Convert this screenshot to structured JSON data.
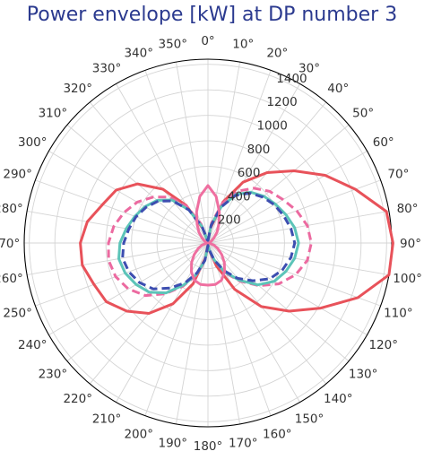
{
  "chart_data": {
    "type": "line",
    "projection": "polar",
    "title": "Power envelope [kW] at DP number 3",
    "theta_zero": "north",
    "theta_direction": "clockwise",
    "theta_tick_labels": [
      "0°",
      "10°",
      "20°",
      "30°",
      "40°",
      "50°",
      "60°",
      "70°",
      "80°",
      "90°",
      "100°",
      "110°",
      "120°",
      "130°",
      "140°",
      "150°",
      "160°",
      "170°",
      "180°",
      "190°",
      "200°",
      "210°",
      "220°",
      "230°",
      "240°",
      "250°",
      "260°",
      "270°",
      "280°",
      "290°",
      "300°",
      "310°",
      "320°",
      "330°",
      "340°",
      "350°"
    ],
    "r_ticks": [
      200,
      400,
      600,
      800,
      1000,
      1200,
      1400
    ],
    "r_tick_labels": [
      "200",
      "400",
      "600",
      "800",
      "1000",
      "1200",
      "1400"
    ],
    "rlim": [
      0,
      1440
    ],
    "grid": true,
    "series": [
      {
        "color": "#e8525a",
        "style": "solid",
        "theta": [
          0,
          10,
          20,
          30,
          40,
          50,
          60,
          70,
          80,
          90,
          100,
          110,
          120,
          130,
          140,
          150,
          160,
          170,
          180,
          190,
          200,
          210,
          220,
          230,
          240,
          250,
          260,
          270,
          280,
          290,
          300,
          310,
          320,
          330,
          340,
          350
        ],
        "r": [
          20,
          120,
          340,
          550,
          720,
          880,
          1060,
          1230,
          1420,
          1450,
          1440,
          1250,
          1020,
          830,
          650,
          420,
          190,
          60,
          15,
          120,
          340,
          550,
          720,
          830,
          920,
          950,
          1000,
          1000,
          960,
          880,
          830,
          720,
          550,
          340,
          120,
          20
        ]
      },
      {
        "color": "#ec6aa0",
        "style": "dashed",
        "theta": [
          0,
          10,
          20,
          30,
          40,
          50,
          60,
          70,
          80,
          90,
          100,
          110,
          120,
          130,
          140,
          150,
          160,
          170,
          180,
          190,
          200,
          210,
          220,
          230,
          240,
          250,
          260,
          270,
          280,
          290,
          300,
          310,
          320,
          330,
          340,
          350
        ],
        "r": [
          20,
          160,
          330,
          470,
          560,
          630,
          680,
          740,
          790,
          810,
          790,
          730,
          640,
          520,
          390,
          270,
          150,
          50,
          20,
          150,
          270,
          390,
          520,
          640,
          720,
          770,
          790,
          780,
          750,
          700,
          640,
          560,
          470,
          330,
          160,
          20
        ]
      },
      {
        "color": "#5cc4b8",
        "style": "solid",
        "theta": [
          0,
          10,
          20,
          30,
          40,
          50,
          60,
          70,
          80,
          90,
          100,
          110,
          120,
          130,
          140,
          150,
          160,
          170,
          180,
          190,
          200,
          210,
          220,
          230,
          240,
          250,
          260,
          270,
          280,
          290,
          300,
          310,
          320,
          330,
          340,
          350
        ],
        "r": [
          20,
          140,
          300,
          440,
          520,
          570,
          610,
          650,
          690,
          710,
          690,
          650,
          600,
          510,
          380,
          260,
          140,
          50,
          20,
          140,
          260,
          380,
          510,
          600,
          650,
          690,
          710,
          690,
          650,
          610,
          570,
          520,
          440,
          300,
          140,
          20
        ]
      },
      {
        "color": "#3d4eb0",
        "style": "dashed",
        "theta": [
          0,
          10,
          20,
          30,
          40,
          50,
          60,
          70,
          80,
          90,
          100,
          110,
          120,
          130,
          140,
          150,
          160,
          170,
          180,
          190,
          200,
          210,
          220,
          230,
          240,
          250,
          260,
          270,
          280,
          290,
          300,
          310,
          320,
          330,
          340,
          350
        ],
        "r": [
          20,
          140,
          300,
          430,
          510,
          560,
          600,
          630,
          660,
          680,
          660,
          620,
          560,
          460,
          360,
          250,
          140,
          50,
          20,
          140,
          250,
          360,
          460,
          560,
          620,
          660,
          680,
          660,
          630,
          600,
          560,
          510,
          430,
          300,
          140,
          20
        ]
      },
      {
        "color": "#ef6fa0",
        "style": "solid",
        "theta": [
          0,
          10,
          20,
          30,
          40,
          50,
          60,
          70,
          80,
          90,
          100,
          110,
          120,
          130,
          140,
          150,
          160,
          170,
          180,
          190,
          200,
          210,
          220,
          230,
          240,
          250,
          260,
          270,
          280,
          290,
          300,
          310,
          320,
          330,
          340,
          350
        ],
        "r": [
          450,
          370,
          260,
          170,
          110,
          60,
          30,
          15,
          10,
          10,
          15,
          50,
          90,
          140,
          200,
          260,
          310,
          330,
          330,
          330,
          310,
          260,
          200,
          140,
          90,
          50,
          15,
          10,
          10,
          15,
          30,
          60,
          110,
          170,
          260,
          370
        ]
      }
    ]
  }
}
